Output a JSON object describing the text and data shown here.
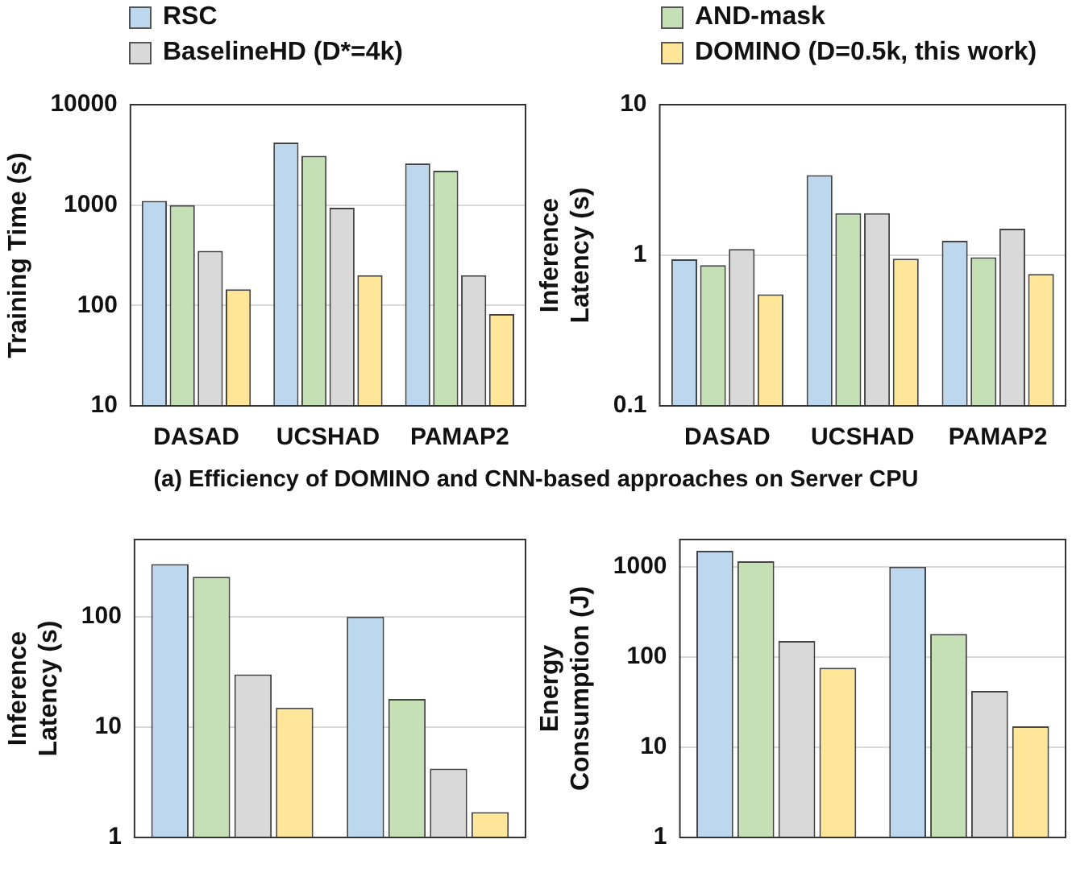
{
  "chart_data": [
    {
      "type": "bar",
      "ylabel": "Training Time (s)",
      "categories": [
        "DASAD",
        "UCSHAD",
        "PAMAP2"
      ],
      "log": "y",
      "ylim": [
        10,
        10000
      ],
      "yticks": [
        10,
        100,
        1000,
        10000
      ],
      "grid": "y",
      "legend": "top",
      "annotations": [
        "(a) Efficiency of DOMINO and CNN-based approaches on Server CPU"
      ],
      "series": [
        {
          "name": "RSC",
          "color": "#bdd7ee",
          "values": [
            1100,
            4200,
            2600
          ]
        },
        {
          "name": "AND-mask",
          "color": "#c5e0b4",
          "values": [
            1000,
            3100,
            2200
          ]
        },
        {
          "name": "BaselineHD (D*=4k)",
          "color": "#d9d9d9",
          "values": [
            350,
            940,
            200
          ]
        },
        {
          "name": "DOMINO (D=0.5k, this work)",
          "color": "#ffe699",
          "values": [
            145,
            200,
            82
          ]
        }
      ]
    },
    {
      "type": "bar",
      "ylabel": "Inference Latency (s)",
      "categories": [
        "DASAD",
        "UCSHAD",
        "PAMAP2"
      ],
      "log": "y",
      "ylim": [
        0.1,
        10
      ],
      "yticks": [
        0.1,
        1,
        10
      ],
      "grid": "y",
      "series": [
        {
          "color": "#bdd7ee",
          "values": [
            0.94,
            3.4,
            1.25
          ]
        },
        {
          "color": "#c5e0b4",
          "values": [
            0.86,
            1.9,
            0.97
          ]
        },
        {
          "color": "#d9d9d9",
          "values": [
            1.1,
            1.9,
            1.5
          ]
        },
        {
          "color": "#ffe699",
          "values": [
            0.55,
            0.95,
            0.75
          ]
        }
      ]
    },
    {
      "type": "bar",
      "ylabel": "Inference Latency (s)",
      "categories": [
        null,
        null
      ],
      "log": "y",
      "ylim": [
        1,
        500
      ],
      "yticks": [
        1,
        10,
        100
      ],
      "grid": "y",
      "series": [
        {
          "color": "#bdd7ee",
          "values": [
            300,
            100
          ]
        },
        {
          "color": "#c5e0b4",
          "values": [
            230,
            18
          ]
        },
        {
          "color": "#d9d9d9",
          "values": [
            30,
            4.2
          ]
        },
        {
          "color": "#ffe699",
          "values": [
            15,
            1.7
          ]
        }
      ]
    },
    {
      "type": "bar",
      "ylabel": "Energy Consumption (J)",
      "categories": [
        null,
        null
      ],
      "log": "y",
      "ylim": [
        1,
        2000
      ],
      "yticks": [
        1,
        10,
        100,
        1000
      ],
      "grid": "y",
      "series": [
        {
          "color": "#bdd7ee",
          "values": [
            1500,
            1000
          ]
        },
        {
          "color": "#c5e0b4",
          "values": [
            1150,
            180
          ]
        },
        {
          "color": "#d9d9d9",
          "values": [
            150,
            42
          ]
        },
        {
          "color": "#ffe699",
          "values": [
            76,
            17
          ]
        }
      ]
    }
  ]
}
